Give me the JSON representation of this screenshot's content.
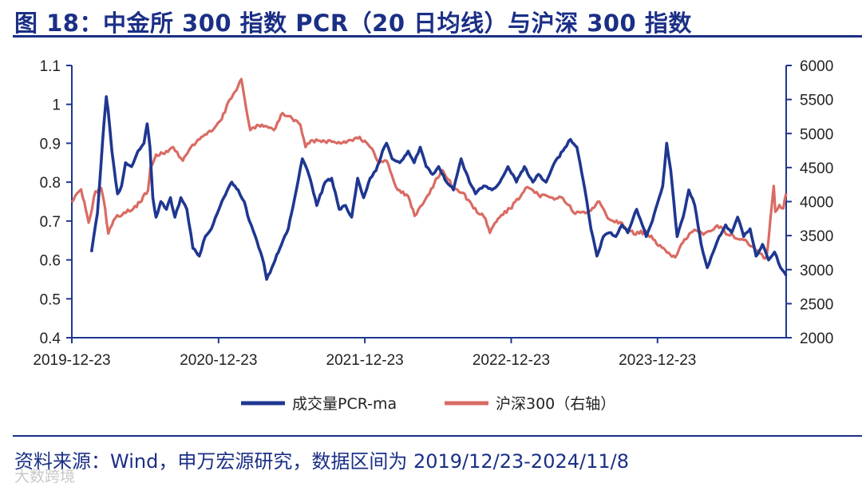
{
  "header": {
    "title": "图 18：中金所 300 指数 PCR（20 日均线）与沪深 300 指数"
  },
  "footer": {
    "source": "资料来源：Wind，申万宏源研究，数据区间为 2019/12/23-2024/11/8",
    "watermark": "大数跨境"
  },
  "colors": {
    "pcr": "#1f3790",
    "hs300": "#d96b63",
    "axis": "#1f3790",
    "title": "#1b2f86"
  },
  "chart_data": {
    "type": "line",
    "title": "图 18：中金所 300 指数 PCR（20 日均线）与沪深 300 指数",
    "x_tick_labels": [
      "2019-12-23",
      "2020-12-23",
      "2021-12-23",
      "2022-12-23",
      "2023-12-23"
    ],
    "x_range": [
      "2019-12-23",
      "2024-11-08"
    ],
    "y_left": {
      "range": [
        0.4,
        1.1
      ],
      "ticks": [
        "0.4",
        "0.5",
        "0.6",
        "0.7",
        "0.8",
        "0.9",
        "1",
        "1.1"
      ]
    },
    "y_right": {
      "range": [
        2000,
        6000
      ],
      "ticks": [
        "2000",
        "2500",
        "3000",
        "3500",
        "4000",
        "4500",
        "5000",
        "5500",
        "6000"
      ]
    },
    "legend_position": "bottom-center",
    "grid": false,
    "series": [
      {
        "name": "成交量PCR-ma",
        "axis": "left",
        "points": [
          [
            "2020-02-10",
            0.62
          ],
          [
            "2020-02-25",
            0.72
          ],
          [
            "2020-03-05",
            0.85
          ],
          [
            "2020-03-12",
            0.95
          ],
          [
            "2020-03-18",
            1.02
          ],
          [
            "2020-03-22",
            0.99
          ],
          [
            "2020-04-01",
            0.88
          ],
          [
            "2020-04-15",
            0.77
          ],
          [
            "2020-04-25",
            0.79
          ],
          [
            "2020-05-05",
            0.85
          ],
          [
            "2020-05-20",
            0.84
          ],
          [
            "2020-06-05",
            0.88
          ],
          [
            "2020-06-20",
            0.9
          ],
          [
            "2020-06-28",
            0.95
          ],
          [
            "2020-07-05",
            0.89
          ],
          [
            "2020-07-12",
            0.76
          ],
          [
            "2020-07-20",
            0.71
          ],
          [
            "2020-08-01",
            0.75
          ],
          [
            "2020-08-15",
            0.73
          ],
          [
            "2020-08-25",
            0.76
          ],
          [
            "2020-09-05",
            0.71
          ],
          [
            "2020-09-20",
            0.76
          ],
          [
            "2020-10-05",
            0.73
          ],
          [
            "2020-10-20",
            0.63
          ],
          [
            "2020-11-05",
            0.61
          ],
          [
            "2020-11-20",
            0.66
          ],
          [
            "2020-12-05",
            0.68
          ],
          [
            "2020-12-20",
            0.72
          ],
          [
            "2021-01-05",
            0.76
          ],
          [
            "2021-01-25",
            0.8
          ],
          [
            "2021-02-10",
            0.78
          ],
          [
            "2021-02-25",
            0.75
          ],
          [
            "2021-03-10",
            0.7
          ],
          [
            "2021-03-25",
            0.66
          ],
          [
            "2021-04-15",
            0.59
          ],
          [
            "2021-04-22",
            0.55
          ],
          [
            "2021-05-05",
            0.58
          ],
          [
            "2021-05-25",
            0.63
          ],
          [
            "2021-06-15",
            0.68
          ],
          [
            "2021-07-05",
            0.78
          ],
          [
            "2021-07-20",
            0.86
          ],
          [
            "2021-08-05",
            0.82
          ],
          [
            "2021-08-25",
            0.74
          ],
          [
            "2021-09-15",
            0.8
          ],
          [
            "2021-10-01",
            0.81
          ],
          [
            "2021-10-20",
            0.73
          ],
          [
            "2021-11-05",
            0.74
          ],
          [
            "2021-11-20",
            0.71
          ],
          [
            "2021-12-05",
            0.81
          ],
          [
            "2021-12-20",
            0.76
          ],
          [
            "2022-01-05",
            0.81
          ],
          [
            "2022-01-20",
            0.83
          ],
          [
            "2022-02-05",
            0.88
          ],
          [
            "2022-02-15",
            0.9
          ],
          [
            "2022-03-01",
            0.86
          ],
          [
            "2022-03-20",
            0.85
          ],
          [
            "2022-04-10",
            0.88
          ],
          [
            "2022-04-25",
            0.85
          ],
          [
            "2022-05-10",
            0.89
          ],
          [
            "2022-05-25",
            0.84
          ],
          [
            "2022-06-10",
            0.82
          ],
          [
            "2022-06-25",
            0.84
          ],
          [
            "2022-07-15",
            0.8
          ],
          [
            "2022-08-01",
            0.78
          ],
          [
            "2022-08-20",
            0.86
          ],
          [
            "2022-09-10",
            0.8
          ],
          [
            "2022-09-25",
            0.77
          ],
          [
            "2022-10-15",
            0.79
          ],
          [
            "2022-11-05",
            0.78
          ],
          [
            "2022-11-25",
            0.8
          ],
          [
            "2022-12-15",
            0.84
          ],
          [
            "2023-01-05",
            0.8
          ],
          [
            "2023-01-25",
            0.84
          ],
          [
            "2023-02-15",
            0.8
          ],
          [
            "2023-03-01",
            0.82
          ],
          [
            "2023-03-20",
            0.8
          ],
          [
            "2023-04-10",
            0.85
          ],
          [
            "2023-05-01",
            0.88
          ],
          [
            "2023-05-20",
            0.91
          ],
          [
            "2023-06-05",
            0.89
          ],
          [
            "2023-06-25",
            0.78
          ],
          [
            "2023-07-10",
            0.68
          ],
          [
            "2023-07-25",
            0.61
          ],
          [
            "2023-08-10",
            0.66
          ],
          [
            "2023-08-25",
            0.67
          ],
          [
            "2023-09-10",
            0.66
          ],
          [
            "2023-09-25",
            0.69
          ],
          [
            "2023-10-10",
            0.67
          ],
          [
            "2023-11-01",
            0.73
          ],
          [
            "2023-11-15",
            0.69
          ],
          [
            "2023-11-25",
            0.66
          ],
          [
            "2023-12-10",
            0.7
          ],
          [
            "2024-01-05",
            0.79
          ],
          [
            "2024-01-15",
            0.9
          ],
          [
            "2024-01-25",
            0.83
          ],
          [
            "2024-02-10",
            0.66
          ],
          [
            "2024-02-25",
            0.71
          ],
          [
            "2024-03-10",
            0.78
          ],
          [
            "2024-03-25",
            0.74
          ],
          [
            "2024-04-10",
            0.64
          ],
          [
            "2024-04-25",
            0.58
          ],
          [
            "2024-05-10",
            0.62
          ],
          [
            "2024-05-25",
            0.66
          ],
          [
            "2024-06-10",
            0.69
          ],
          [
            "2024-06-25",
            0.67
          ],
          [
            "2024-07-10",
            0.71
          ],
          [
            "2024-07-25",
            0.66
          ],
          [
            "2024-08-10",
            0.68
          ],
          [
            "2024-08-25",
            0.61
          ],
          [
            "2024-09-10",
            0.64
          ],
          [
            "2024-09-25",
            0.6
          ],
          [
            "2024-10-10",
            0.62
          ],
          [
            "2024-10-25",
            0.58
          ],
          [
            "2024-11-08",
            0.56
          ]
        ]
      },
      {
        "name": "沪深300（右轴）",
        "axis": "right",
        "points": [
          [
            "2019-12-23",
            3990
          ],
          [
            "2020-01-05",
            4120
          ],
          [
            "2020-01-15",
            4180
          ],
          [
            "2020-01-23",
            4000
          ],
          [
            "2020-02-03",
            3690
          ],
          [
            "2020-02-20",
            4150
          ],
          [
            "2020-03-05",
            4200
          ],
          [
            "2020-03-15",
            3900
          ],
          [
            "2020-03-23",
            3530
          ],
          [
            "2020-04-10",
            3760
          ],
          [
            "2020-05-01",
            3840
          ],
          [
            "2020-05-20",
            3870
          ],
          [
            "2020-06-10",
            3990
          ],
          [
            "2020-06-30",
            4160
          ],
          [
            "2020-07-06",
            4500
          ],
          [
            "2020-07-20",
            4690
          ],
          [
            "2020-08-10",
            4700
          ],
          [
            "2020-09-01",
            4800
          ],
          [
            "2020-09-25",
            4600
          ],
          [
            "2020-10-15",
            4800
          ],
          [
            "2020-11-10",
            4950
          ],
          [
            "2020-12-05",
            5030
          ],
          [
            "2020-12-31",
            5210
          ],
          [
            "2021-01-20",
            5500
          ],
          [
            "2021-02-10",
            5700
          ],
          [
            "2021-02-18",
            5800
          ],
          [
            "2021-03-01",
            5400
          ],
          [
            "2021-03-12",
            5050
          ],
          [
            "2021-04-10",
            5130
          ],
          [
            "2021-05-10",
            5050
          ],
          [
            "2021-06-01",
            5300
          ],
          [
            "2021-06-25",
            5220
          ],
          [
            "2021-07-15",
            5130
          ],
          [
            "2021-07-28",
            4800
          ],
          [
            "2021-08-15",
            4900
          ],
          [
            "2021-09-10",
            4900
          ],
          [
            "2021-10-10",
            4870
          ],
          [
            "2021-11-10",
            4890
          ],
          [
            "2021-12-10",
            4950
          ],
          [
            "2022-01-05",
            4800
          ],
          [
            "2022-01-28",
            4570
          ],
          [
            "2022-02-15",
            4600
          ],
          [
            "2022-03-15",
            4170
          ],
          [
            "2022-04-10",
            4080
          ],
          [
            "2022-04-26",
            3790
          ],
          [
            "2022-05-20",
            4000
          ],
          [
            "2022-06-15",
            4280
          ],
          [
            "2022-07-05",
            4460
          ],
          [
            "2022-08-01",
            4200
          ],
          [
            "2022-08-25",
            4130
          ],
          [
            "2022-09-20",
            3900
          ],
          [
            "2022-10-20",
            3750
          ],
          [
            "2022-10-31",
            3540
          ],
          [
            "2022-11-20",
            3750
          ],
          [
            "2022-12-20",
            3900
          ],
          [
            "2023-01-15",
            4070
          ],
          [
            "2023-01-28",
            4200
          ],
          [
            "2023-03-01",
            4100
          ],
          [
            "2023-04-01",
            4060
          ],
          [
            "2023-05-01",
            4050
          ],
          [
            "2023-06-01",
            3820
          ],
          [
            "2023-07-01",
            3840
          ],
          [
            "2023-07-31",
            4000
          ],
          [
            "2023-08-25",
            3740
          ],
          [
            "2023-09-25",
            3690
          ],
          [
            "2023-10-25",
            3520
          ],
          [
            "2023-11-25",
            3560
          ],
          [
            "2023-12-25",
            3350
          ],
          [
            "2024-01-20",
            3250
          ],
          [
            "2024-02-05",
            3180
          ],
          [
            "2024-02-20",
            3370
          ],
          [
            "2024-03-20",
            3560
          ],
          [
            "2024-04-20",
            3540
          ],
          [
            "2024-05-20",
            3650
          ],
          [
            "2024-06-20",
            3500
          ],
          [
            "2024-07-20",
            3450
          ],
          [
            "2024-08-20",
            3320
          ],
          [
            "2024-09-13",
            3170
          ],
          [
            "2024-09-20",
            3200
          ],
          [
            "2024-09-26",
            3500
          ],
          [
            "2024-10-08",
            4230
          ],
          [
            "2024-10-12",
            3850
          ],
          [
            "2024-10-22",
            3950
          ],
          [
            "2024-11-01",
            3900
          ],
          [
            "2024-11-08",
            4120
          ]
        ]
      }
    ]
  }
}
